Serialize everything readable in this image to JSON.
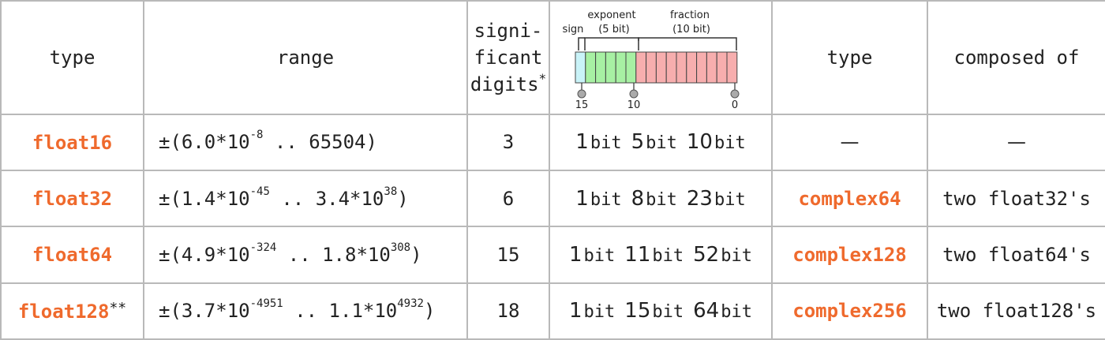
{
  "headers": {
    "type": "type",
    "range": "range",
    "significant_line1": "signi-",
    "significant_line2": "ficant",
    "significant_line3": "digits",
    "significant_mark": "*",
    "type2": "type",
    "composed_of": "composed of"
  },
  "diagram": {
    "sign_label": "sign",
    "exponent_label_1": "exponent",
    "exponent_label_2": "(5 bit)",
    "fraction_label_1": "fraction",
    "fraction_label_2": "(10 bit)",
    "tick_15": "15",
    "tick_10": "10",
    "tick_0": "0",
    "sign_color": "#c9f3f8",
    "exponent_color": "#a7f0a3",
    "fraction_color": "#f7aeae"
  },
  "colors": {
    "type_name": "#ef6a2d",
    "border": "#b9b9b9"
  },
  "rows": [
    {
      "type": "float16",
      "type_mark": "",
      "range_open": "±(6.0*10",
      "range_exp1": "-8",
      "range_mid": " .. 65504)",
      "range_exp2": "",
      "range_close": "",
      "digits": "3",
      "bits_sign": "1",
      "bits_exp": "5",
      "bits_frac": "10",
      "bit_unit": "bit",
      "complex_type": "—",
      "composed_of": "—"
    },
    {
      "type": "float32",
      "type_mark": "",
      "range_open": "±(1.4*10",
      "range_exp1": "-45",
      "range_mid": " .. 3.4*10",
      "range_exp2": "38",
      "range_close": ")",
      "digits": "6",
      "bits_sign": "1",
      "bits_exp": "8",
      "bits_frac": "23",
      "bit_unit": "bit",
      "complex_type": "complex64",
      "composed_of": "two float32's"
    },
    {
      "type": "float64",
      "type_mark": "",
      "range_open": "±(4.9*10",
      "range_exp1": "-324",
      "range_mid": " .. 1.8*10",
      "range_exp2": "308",
      "range_close": ")",
      "digits": "15",
      "bits_sign": "1",
      "bits_exp": "11",
      "bits_frac": "52",
      "bit_unit": "bit",
      "complex_type": "complex128",
      "composed_of": "two float64's"
    },
    {
      "type": "float128",
      "type_mark": "**",
      "range_open": "±(3.7*10",
      "range_exp1": "-4951",
      "range_mid": " .. 1.1*10",
      "range_exp2": "4932",
      "range_close": ")",
      "digits": "18",
      "bits_sign": "1",
      "bits_exp": "15",
      "bits_frac": "64",
      "bit_unit": "bit",
      "complex_type": "complex256",
      "composed_of": "two float128's"
    }
  ]
}
